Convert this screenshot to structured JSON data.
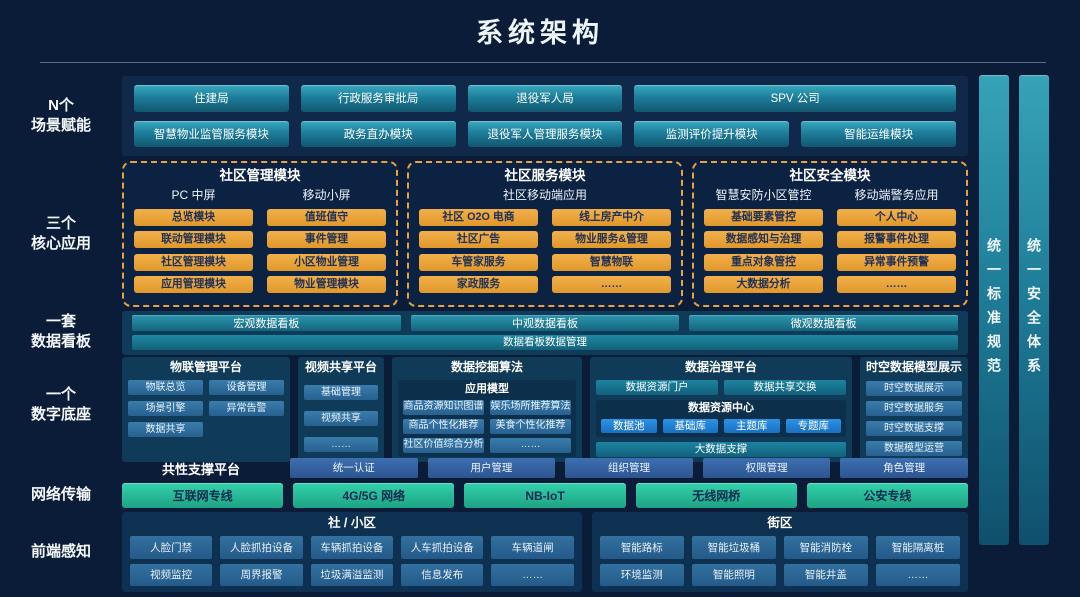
{
  "title": "系统架构",
  "colors": {
    "background": "#0a1c38",
    "accent_teal": "#2e9fb4",
    "accent_orange": "#e8a33c",
    "accent_green": "#27bfa0",
    "accent_bright_blue": "#1e86dc",
    "accent_steel_blue": "#2e6ca8"
  },
  "left_labels": [
    "N个\n场景赋能",
    "三个\n核心应用",
    "一套\n数据看板",
    "一个\n数字底座",
    "网络传输",
    "前端感知"
  ],
  "right_bars": [
    "统一标准规范",
    "统一安全体系"
  ],
  "scenario": {
    "row1": [
      "住建局",
      "行政服务审批局",
      "退役军人局",
      "SPV  公司"
    ],
    "row2": [
      "智慧物业监管服务模块",
      "政务直办模块",
      "退役军人管理服务模块",
      "监测评价提升模块",
      "智能运维模块"
    ]
  },
  "core_apps": {
    "management": {
      "title": "社区管理模块",
      "col1_header": "PC 中屏",
      "col2_header": "移动小屏",
      "col1": [
        "总览模块",
        "联动管理模块",
        "社区管理模块",
        "应用管理模块"
      ],
      "col2": [
        "值班值守",
        "事件管理",
        "小区物业管理",
        "物业管理模块"
      ]
    },
    "service": {
      "title": "社区服务模块",
      "span_header": "社区移动端应用",
      "col1": [
        "社区 O2O 电商",
        "社区广告",
        "车管家服务",
        "家政服务"
      ],
      "col2": [
        "线上房产中介",
        "物业服务&管理",
        "智慧物联",
        "……"
      ]
    },
    "security": {
      "title": "社区安全模块",
      "col1_header": "智慧安防小区管控",
      "col2_header": "移动端警务应用",
      "col1": [
        "基础要素管控",
        "数据感知与治理",
        "重点对象管控",
        "大数据分析"
      ],
      "col2": [
        "个人中心",
        "报警事件处理",
        "异常事件预警",
        "……"
      ]
    }
  },
  "dashboard": {
    "boards": [
      "宏观数据看板",
      "中观数据看板",
      "微观数据看板"
    ],
    "management_bar": "数据看板数据管理"
  },
  "digital_base": {
    "iot": {
      "title": "物联管理平台",
      "items": [
        "物联总览",
        "设备管理",
        "场景引擎",
        "异常告警",
        "数据共享"
      ]
    },
    "video": {
      "title": "视频共享平台",
      "items": [
        "基础管理",
        "视频共享",
        "……"
      ]
    },
    "mining": {
      "title": "数据挖掘算法",
      "model_header": "应用模型",
      "items": [
        "商品资源知识图谱",
        "娱乐场所推荐算法",
        "商品个性化推荐",
        "美食个性化推荐",
        "社区价值综合分析",
        "……"
      ]
    },
    "governance": {
      "title": "数据治理平台",
      "top_items": [
        "数据资源门户",
        "数据共享交换"
      ],
      "center_title": "数据资源中心",
      "center_items": [
        "数据池",
        "基础库",
        "主题库",
        "专题库"
      ],
      "support_bar": "大数据支撑"
    },
    "spatiotemporal": {
      "title": "时空数据模型展示",
      "items": [
        "时空数据展示",
        "时空数据服务",
        "时空数据支撑",
        "数据模型运营"
      ]
    },
    "common_support": {
      "label": "共性支撑平台",
      "items": [
        "统一认证",
        "用户管理",
        "组织管理",
        "权限管理",
        "角色管理"
      ]
    }
  },
  "network": {
    "items": [
      "互联网专线",
      "4G/5G  网络",
      "NB-IoT",
      "无线网桥",
      "公安专线"
    ]
  },
  "perception": {
    "community": {
      "title": "社 / 小区",
      "items": [
        "人脸门禁",
        "人脸抓拍设备",
        "车辆抓拍设备",
        "人车抓拍设备",
        "车辆道闸",
        "视频监控",
        "周界报警",
        "垃圾满溢监测",
        "信息发布",
        "……"
      ]
    },
    "street": {
      "title": "街区",
      "items": [
        "智能路标",
        "智能垃圾桶",
        "智能消防栓",
        "智能隔离桩",
        "环境监测",
        "智能照明",
        "智能井盖",
        "……"
      ]
    }
  }
}
